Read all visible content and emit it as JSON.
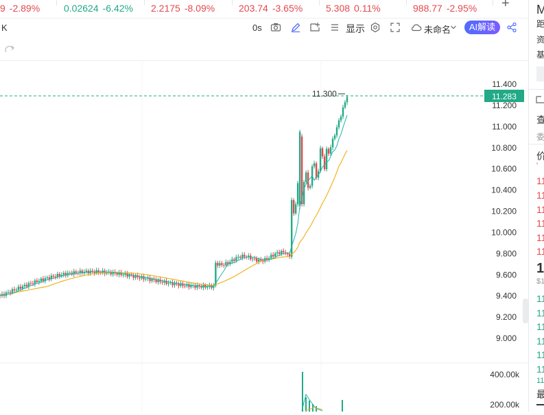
{
  "tickers": [
    {
      "price": "9",
      "change": "-2.89%",
      "color": "red"
    },
    {
      "price": "0.02624",
      "change": "-6.42%",
      "color": "green"
    },
    {
      "price": "2.2175",
      "change": "-8.09%",
      "color": "red"
    },
    {
      "price": "203.74",
      "change": "-3.65%",
      "color": "red"
    },
    {
      "price": "5.308",
      "change": "0.11%",
      "color": "red"
    },
    {
      "price": "988.77",
      "change": "-2.95%",
      "color": "red"
    }
  ],
  "toolbar": {
    "symbol_fragment": "K",
    "time_label": "0s",
    "display_label": "显示",
    "layout_name": "未命名",
    "ai_button": "AI解读"
  },
  "chart_data": {
    "type": "candlestick",
    "y_axis_ticks": [
      "11.400",
      "11.200",
      "11.000",
      "10.800",
      "10.600",
      "10.400",
      "10.200",
      "10.000",
      "9.800",
      "9.600",
      "9.400",
      "9.200",
      "9.000"
    ],
    "ylim": [
      9.0,
      11.4
    ],
    "high_marker": "11.300",
    "last_price": "11.283",
    "volume_ticks": [
      "400.00k",
      "200.00k"
    ],
    "colors": {
      "up": "#22a986",
      "down": "#e5484d",
      "ma_fast": "#22b3a7",
      "ma_slow": "#f0b323",
      "last_line": "#22a986"
    }
  },
  "right_panel": {
    "header": "M",
    "rows": [
      "距",
      "资",
      "基"
    ],
    "tab1": "查",
    "tab2": "委",
    "price_label": "价",
    "ask_values": [
      "11",
      "11",
      "11",
      "11",
      "11",
      "11"
    ],
    "mid_value": "1",
    "mid_sub": "$1",
    "bid_values": [
      "11",
      "11",
      "11",
      "11",
      "11",
      "11",
      "11"
    ],
    "bottom_label": "最"
  }
}
